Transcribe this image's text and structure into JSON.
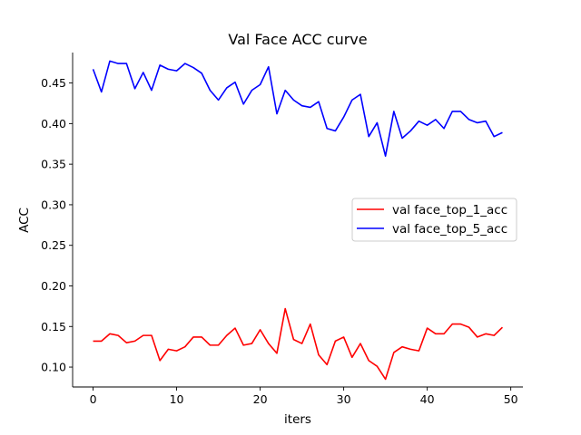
{
  "chart_data": {
    "type": "line",
    "title": "Val Face ACC curve",
    "xlabel": "iters",
    "ylabel": "ACC",
    "xlim": [
      -2.45,
      51.45
    ],
    "ylim": [
      0.0755,
      0.4875
    ],
    "xticks": [
      0,
      10,
      20,
      30,
      40,
      50
    ],
    "yticks": [
      0.1,
      0.15,
      0.2,
      0.25,
      0.3,
      0.35,
      0.4,
      0.45
    ],
    "ytick_labels": [
      "0.10",
      "0.15",
      "0.20",
      "0.25",
      "0.30",
      "0.35",
      "0.40",
      "0.45"
    ],
    "grid": false,
    "legend_position": "center-right",
    "x": [
      0,
      1,
      2,
      3,
      4,
      5,
      6,
      7,
      8,
      9,
      10,
      11,
      12,
      13,
      14,
      15,
      16,
      17,
      18,
      19,
      20,
      21,
      22,
      23,
      24,
      25,
      26,
      27,
      28,
      29,
      30,
      31,
      32,
      33,
      34,
      35,
      36,
      37,
      38,
      39,
      40,
      41,
      42,
      43,
      44,
      45,
      46,
      47,
      48,
      49
    ],
    "series": [
      {
        "name": "val face_top_1_acc",
        "color": "#ff0000",
        "values": [
          0.132,
          0.132,
          0.141,
          0.139,
          0.13,
          0.132,
          0.139,
          0.139,
          0.108,
          0.122,
          0.12,
          0.125,
          0.137,
          0.137,
          0.127,
          0.127,
          0.139,
          0.148,
          0.127,
          0.129,
          0.146,
          0.129,
          0.117,
          0.172,
          0.134,
          0.129,
          0.153,
          0.115,
          0.103,
          0.132,
          0.137,
          0.112,
          0.129,
          0.108,
          0.101,
          0.085,
          0.118,
          0.125,
          0.122,
          0.12,
          0.148,
          0.141,
          0.141,
          0.153,
          0.153,
          0.149,
          0.137,
          0.141,
          0.139,
          0.149
        ]
      },
      {
        "name": "val face_top_5_acc",
        "color": "#0000ff",
        "values": [
          0.467,
          0.439,
          0.477,
          0.474,
          0.474,
          0.443,
          0.463,
          0.441,
          0.472,
          0.467,
          0.465,
          0.474,
          0.469,
          0.462,
          0.441,
          0.429,
          0.444,
          0.451,
          0.424,
          0.441,
          0.448,
          0.47,
          0.412,
          0.441,
          0.429,
          0.422,
          0.42,
          0.427,
          0.394,
          0.391,
          0.408,
          0.429,
          0.436,
          0.384,
          0.401,
          0.36,
          0.415,
          0.382,
          0.391,
          0.403,
          0.398,
          0.405,
          0.394,
          0.415,
          0.415,
          0.405,
          0.401,
          0.403,
          0.384,
          0.389
        ]
      }
    ]
  }
}
